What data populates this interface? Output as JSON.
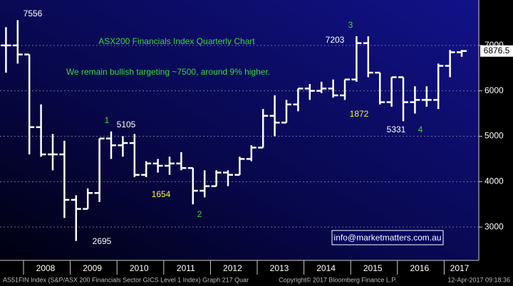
{
  "chart_data": {
    "type": "ohlc",
    "title": "ASX200 Financials Index Quarterly Chart",
    "subtitle": "We remain bullish targeting ~7500, around 9% higher.",
    "contact": "info@marketmatters.com.au",
    "last_price_label": "6876.5",
    "footer_left": "AS51FIN Index (S&P/ASX 200 Financials Sector GICS Level 1 Index) Graph 217  Quar",
    "footer_center": "Copyright© 2017 Bloomberg Finance L.P.",
    "footer_right": "12-Apr-2017 09:18:36",
    "years": [
      "2008",
      "2009",
      "2010",
      "2011",
      "2012",
      "2013",
      "2014",
      "2015",
      "2016",
      "2017"
    ],
    "categories": [
      null,
      null,
      null,
      null,
      null,
      null,
      null,
      null,
      null,
      null,
      null,
      null,
      null,
      null,
      null,
      null,
      null,
      null,
      null,
      null,
      null,
      null,
      null,
      null,
      null,
      null,
      null,
      null,
      null,
      null,
      null,
      null,
      null,
      null,
      null,
      null,
      null,
      null,
      null,
      null
    ],
    "color": "#ffffff",
    "open": [
      7000,
      7000,
      6800,
      5200,
      4600,
      4600,
      3600,
      3400,
      3750,
      4950,
      4800,
      4850,
      4150,
      4400,
      4350,
      4400,
      4300,
      3800,
      3900,
      4200,
      4150,
      4500,
      4750,
      5450,
      5300,
      5700,
      6050,
      6000,
      6050,
      5900,
      6250,
      7050,
      6400,
      5750,
      6300,
      5750,
      5800,
      5800,
      6550,
      6850
    ],
    "high": [
      7400,
      7556,
      6800,
      5700,
      5050,
      4900,
      3700,
      3850,
      4950,
      5105,
      5000,
      5050,
      4450,
      4500,
      4550,
      4650,
      4300,
      4250,
      4250,
      4250,
      4550,
      4800,
      5600,
      5900,
      5800,
      6050,
      6150,
      6200,
      6250,
      6250,
      7203,
      7200,
      6400,
      6300,
      6300,
      6100,
      6100,
      6600,
      6900,
      6900
    ],
    "low": [
      6400,
      6600,
      4600,
      4550,
      4250,
      3200,
      2695,
      3400,
      3550,
      4500,
      4550,
      4100,
      4100,
      4200,
      4150,
      4250,
      3500,
      3654,
      3900,
      3900,
      4150,
      4450,
      4750,
      5000,
      5300,
      5550,
      5800,
      5950,
      5850,
      5800,
      6200,
      6300,
      5700,
      5650,
      5331,
      5500,
      5650,
      5600,
      6300,
      6750
    ],
    "close": [
      7000,
      6800,
      5200,
      4600,
      4600,
      3600,
      3400,
      3750,
      4950,
      4800,
      4850,
      4150,
      4400,
      4350,
      4400,
      4300,
      3800,
      3900,
      4200,
      4150,
      4500,
      4750,
      5450,
      5300,
      5700,
      6050,
      6000,
      6050,
      5900,
      6250,
      7050,
      6400,
      5750,
      6300,
      5750,
      5800,
      5800,
      6550,
      6850,
      6876.5
    ],
    "ylim": [
      2266,
      8000
    ],
    "yticks": [
      3000,
      4000,
      5000,
      6000,
      7000
    ],
    "grid": true,
    "annotations": [
      {
        "text": "7556",
        "color": "#ffffff"
      },
      {
        "text": "2695",
        "color": "#ffffff"
      },
      {
        "text": "1",
        "color": "#33dd33"
      },
      {
        "text": "5105",
        "color": "#ffffff"
      },
      {
        "text": "1654",
        "color": "#ffee44"
      },
      {
        "text": "2",
        "color": "#33dd33"
      },
      {
        "text": "3",
        "color": "#33dd33"
      },
      {
        "text": "7203",
        "color": "#ffffff"
      },
      {
        "text": "1872",
        "color": "#ffee44"
      },
      {
        "text": "5331",
        "color": "#ffffff"
      },
      {
        "text": "4",
        "color": "#33dd33"
      }
    ]
  }
}
